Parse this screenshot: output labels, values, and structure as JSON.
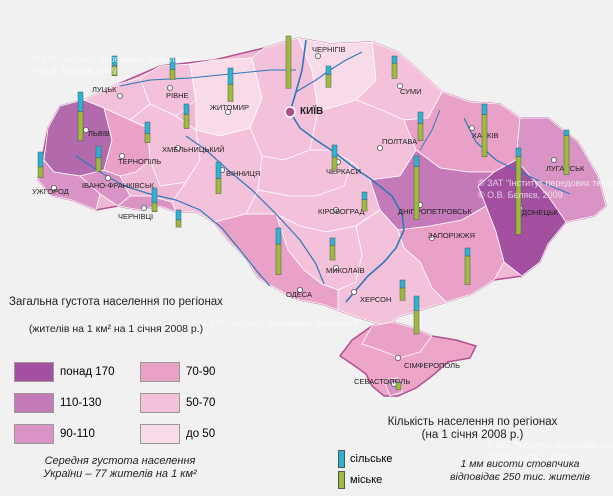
{
  "density_legend": {
    "title": "Загальна густота населення по регіонах",
    "subtitle": "(жителів на 1 км² на 1 січня 2008 р.)",
    "classes": [
      {
        "label": "понад 170",
        "color": "#a2509f"
      },
      {
        "label": "110-130",
        "color": "#c47ab8"
      },
      {
        "label": "90-110",
        "color": "#d994c5"
      },
      {
        "label": "70-90",
        "color": "#eaa1c8"
      },
      {
        "label": "50-70",
        "color": "#f3c1da"
      },
      {
        "label": "до 50",
        "color": "#f8dbe8"
      }
    ],
    "average_note_line1": "Середня густота населення",
    "average_note_line2": "України –  77 жителів на 1 км²"
  },
  "population_legend": {
    "title": "Кількість населення по регіонах",
    "subtitle": "(на 1 січня 2008 р.)",
    "rural_label": "сільське",
    "rural_color": "#2bb3d3",
    "urban_label": "міське",
    "urban_color": "#9dbb3c",
    "scale_note_line1": "1 мм висоти стовпчика",
    "scale_note_line2": "відповідає 250 тис. жителів"
  },
  "capital": {
    "name": "КИЇВ"
  },
  "cities": [
    {
      "name": "ЧЕРНІГІВ"
    },
    {
      "name": "ЛУЦЬК"
    },
    {
      "name": "РІВНЕ"
    },
    {
      "name": "ЖИТОМИР"
    },
    {
      "name": "СУМИ"
    },
    {
      "name": "ЛЬВІВ"
    },
    {
      "name": "ТЕРНОПІЛЬ"
    },
    {
      "name": "ХМЕЛЬНИЦЬКИЙ"
    },
    {
      "name": "ХАРКІВ"
    },
    {
      "name": "ПОЛТАВА"
    },
    {
      "name": "ВІННИЦЯ"
    },
    {
      "name": "ЧЕРКАСИ"
    },
    {
      "name": "ІВАНО-ФРАНКІВСЬК"
    },
    {
      "name": "УЖГОРОД"
    },
    {
      "name": "ЧЕРНІВЦІ"
    },
    {
      "name": "ЛУГАНСЬК"
    },
    {
      "name": "ДНІПРОПЕТРОВСЬК"
    },
    {
      "name": "ДОНЕЦЬК"
    },
    {
      "name": "КІРОВОГРАД"
    },
    {
      "name": "ЗАПОРІЖЖЯ"
    },
    {
      "name": "МИКОЛАЇВ"
    },
    {
      "name": "ОДЕСА"
    },
    {
      "name": "ХЕРСОН"
    },
    {
      "name": "СІМФЕРОПОЛЬ"
    },
    {
      "name": "СЕВАСТОПОЛЬ"
    }
  ],
  "watermarks": [
    {
      "text": "© ЗАТ \"Інститут передових технологій\""
    },
    {
      "text": "© О.В. Бєляєв, 2009"
    }
  ],
  "region_bars": [
    {
      "region": "Волинська",
      "rural": 0.52,
      "urban": 0.52
    },
    {
      "region": "Рівненська",
      "rural": 0.6,
      "urban": 0.53
    },
    {
      "region": "Житомирська",
      "rural": 0.54,
      "urban": 0.75
    },
    {
      "region": "Київська",
      "rural": 0.86,
      "urban": 0.9
    },
    {
      "region": "м. Київ",
      "rural": 0.0,
      "urban": 2.75
    },
    {
      "region": "Чернігівська",
      "rural": 0.45,
      "urban": 0.67
    },
    {
      "region": "Сумська",
      "rural": 0.38,
      "urban": 0.8
    },
    {
      "region": "Львівська",
      "rural": 1.03,
      "urban": 1.53
    },
    {
      "region": "Тернопільська",
      "rural": 0.62,
      "urban": 0.47
    },
    {
      "region": "Хмельницька",
      "rural": 0.62,
      "urban": 0.71
    },
    {
      "region": "Вінницька",
      "rural": 0.86,
      "urban": 0.8
    },
    {
      "region": "Черкаська",
      "rural": 0.64,
      "urban": 0.68
    },
    {
      "region": "Полтавська",
      "rural": 0.6,
      "urban": 0.9
    },
    {
      "region": "Харківська",
      "rural": 0.55,
      "urban": 2.22
    },
    {
      "region": "Луганська",
      "rural": 0.3,
      "urban": 2.05
    },
    {
      "region": "Донецька",
      "rural": 0.45,
      "urban": 4.1
    },
    {
      "region": "Дніпропетровська",
      "rural": 0.55,
      "urban": 2.8
    },
    {
      "region": "Кіровоградська",
      "rural": 0.4,
      "urban": 0.6
    },
    {
      "region": "Запорізька",
      "rural": 0.42,
      "urban": 1.5
    },
    {
      "region": "Миколаївська",
      "rural": 0.38,
      "urban": 0.78
    },
    {
      "region": "Одеська",
      "rural": 0.85,
      "urban": 1.6
    },
    {
      "region": "Херсонська",
      "rural": 0.42,
      "urban": 0.65
    },
    {
      "region": "АР Крим",
      "rural": 0.75,
      "urban": 1.25
    },
    {
      "region": "м. Севастополь",
      "rural": 0.03,
      "urban": 0.37
    },
    {
      "region": "Івано-Франківська",
      "rural": 0.78,
      "urban": 0.57
    },
    {
      "region": "Закарпатська",
      "rural": 0.78,
      "urban": 0.47
    },
    {
      "region": "Чернівецька",
      "rural": 0.52,
      "urban": 0.38
    }
  ]
}
